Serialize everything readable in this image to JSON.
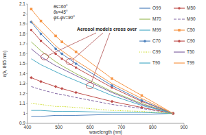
{
  "chart_data": {
    "type": "line",
    "x_label": "wavelength (nm)",
    "y_label": "ε(λ, 865 nm)",
    "annotations": [
      "θs=60°",
      "θv=45°",
      "φs-φv=90°",
      "Aerosol models cross over"
    ],
    "x": [
      412,
      443,
      490,
      510,
      555,
      670,
      765,
      865
    ],
    "xlim": [
      400,
      900
    ],
    "xticks": [
      400,
      500,
      600,
      700,
      800,
      900
    ],
    "ylim": [
      0.9,
      2.1
    ],
    "yticks": [
      0.9,
      1,
      1.1,
      1.2,
      1.3,
      1.4,
      1.5,
      1.6,
      1.7,
      1.8,
      1.9,
      2,
      2.1
    ],
    "grid": false,
    "legend": "top-right",
    "series": [
      {
        "name": "O99",
        "color": "#4f81bd",
        "values": [
          0.97,
          0.97,
          0.98,
          0.98,
          0.98,
          0.99,
          0.99,
          1.0
        ]
      },
      {
        "name": "M50",
        "color": "#c0504d",
        "marker": "circle",
        "values": [
          1.84,
          1.73,
          1.6,
          1.55,
          1.46,
          1.26,
          1.12,
          1.0
        ]
      },
      {
        "name": "M70",
        "color": "#9bbb59",
        "values": [
          1.72,
          1.63,
          1.52,
          1.48,
          1.4,
          1.22,
          1.1,
          1.0
        ]
      },
      {
        "name": "M90",
        "color": "#8064a2",
        "line_style": "dashed",
        "values": [
          1.27,
          1.24,
          1.2,
          1.19,
          1.16,
          1.09,
          1.05,
          1.0
        ]
      },
      {
        "name": "M99",
        "color": "#4bacc6",
        "values": [
          1.03,
          1.03,
          1.02,
          1.02,
          1.02,
          1.01,
          1.01,
          1.0
        ]
      },
      {
        "name": "C50",
        "color": "#f79646",
        "marker": "square",
        "values": [
          2.05,
          1.93,
          1.78,
          1.72,
          1.62,
          1.35,
          1.18,
          1.0
        ]
      },
      {
        "name": "C70",
        "color": "#4f81bd",
        "marker": "diamond",
        "values": [
          1.92,
          1.8,
          1.65,
          1.6,
          1.5,
          1.28,
          1.13,
          1.0
        ]
      },
      {
        "name": "C90",
        "color": "#c0504d",
        "marker": "diamond",
        "values": [
          1.36,
          1.32,
          1.27,
          1.25,
          1.21,
          1.12,
          1.06,
          1.0
        ]
      },
      {
        "name": "C99",
        "color": "#c4d600",
        "line_style": "dotted",
        "values": [
          1.1,
          1.09,
          1.07,
          1.07,
          1.06,
          1.03,
          1.02,
          1.0
        ]
      },
      {
        "name": "T50",
        "color": "#8064a2",
        "values": [
          1.65,
          1.57,
          1.48,
          1.45,
          1.38,
          1.21,
          1.09,
          1.0
        ]
      },
      {
        "name": "T90",
        "color": "#4bacc6",
        "values": [
          1.55,
          1.49,
          1.42,
          1.39,
          1.33,
          1.18,
          1.08,
          1.0
        ]
      },
      {
        "name": "T99",
        "color": "#f79646",
        "values": [
          1.93,
          1.83,
          1.68,
          1.63,
          1.53,
          1.3,
          1.15,
          1.0
        ]
      }
    ]
  }
}
